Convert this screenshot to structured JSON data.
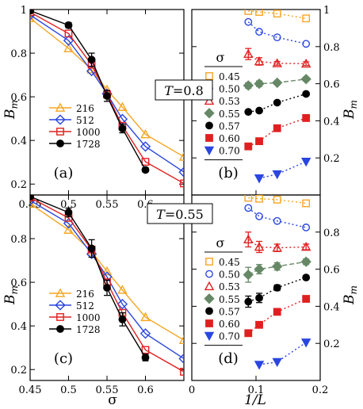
{
  "figure": {
    "shared_ylabel": "B",
    "shared_ylabel_sub": "m",
    "left_xlabel": "σ",
    "right_xlabel": "1/L",
    "temperature_labels": [
      "T=0.8",
      "T=0.55"
    ],
    "temp_prefix": "T",
    "temp_values": [
      "0.8",
      "0.55"
    ]
  },
  "chart_data": [
    {
      "panel": "a",
      "panel_label": "(a)",
      "type": "line",
      "xlim": [
        0.45,
        0.65
      ],
      "ylim": [
        0.15,
        1.0
      ],
      "xticks": [
        "0.45",
        "0.5",
        "0.55",
        "0.6"
      ],
      "yticks": [
        "0.2",
        "0.4",
        "0.6",
        "0.8",
        "1"
      ],
      "xlabel": "",
      "legend_position": "lower-left",
      "series": [
        {
          "name": "216",
          "color": "#f5a623",
          "marker": "triangle-open",
          "x": [
            0.45,
            0.5,
            0.53,
            0.55,
            0.57,
            0.6,
            0.65
          ],
          "y": [
            0.96,
            0.822,
            0.725,
            0.632,
            0.553,
            0.428,
            0.325
          ]
        },
        {
          "name": "512",
          "color": "#2a46e0",
          "marker": "diamond-open",
          "x": [
            0.45,
            0.5,
            0.53,
            0.55,
            0.57,
            0.6,
            0.65
          ],
          "y": [
            0.975,
            0.858,
            0.718,
            0.614,
            0.498,
            0.372,
            0.255
          ]
        },
        {
          "name": "1000",
          "color": "#e02020",
          "marker": "square-open",
          "x": [
            0.45,
            0.5,
            0.53,
            0.55,
            0.57,
            0.6,
            0.65
          ],
          "y": [
            0.988,
            0.89,
            0.747,
            0.611,
            0.467,
            0.302,
            0.203
          ]
        },
        {
          "name": "1728",
          "color": "#000000",
          "marker": "circle-filled",
          "x": [
            0.45,
            0.5,
            0.53,
            0.55,
            0.57,
            0.6
          ],
          "y": [
            0.995,
            0.928,
            0.77,
            0.604,
            0.455,
            0.265
          ],
          "yerr": [
            0.005,
            0.012,
            0.03,
            0.025,
            0.02,
            0.01
          ]
        }
      ]
    },
    {
      "panel": "b",
      "panel_label": "(b)",
      "type": "scatter",
      "xlim": [
        0,
        0.2
      ],
      "ylim": [
        0,
        1.0
      ],
      "xticks": [],
      "yticks": [
        "0.2",
        "0.4",
        "0.6",
        "0.8",
        "1"
      ],
      "ylabel_side": "right",
      "legend_title": "σ",
      "legend_position": "left",
      "series": [
        {
          "name": "0.45",
          "color": "#f5a623",
          "marker": "square-open",
          "x": [
            0.088,
            0.105,
            0.133,
            0.178
          ],
          "y": [
            0.992,
            0.987,
            0.978,
            0.952
          ]
        },
        {
          "name": "0.50",
          "color": "#2a46e0",
          "marker": "circle-open",
          "x": [
            0.088,
            0.105,
            0.133,
            0.178
          ],
          "y": [
            0.933,
            0.88,
            0.85,
            0.815
          ]
        },
        {
          "name": "0.53",
          "color": "#e02020",
          "marker": "triangle-open",
          "x": [
            0.088,
            0.105,
            0.133,
            0.178
          ],
          "y": [
            0.76,
            0.72,
            0.71,
            0.708
          ],
          "yerr": [
            0.03,
            0.02,
            0.01,
            0.01
          ]
        },
        {
          "name": "0.55",
          "color": "#668866",
          "marker": "diamond-filled",
          "x": [
            0.088,
            0.105,
            0.133,
            0.178
          ],
          "y": [
            0.59,
            0.6,
            0.605,
            0.625
          ],
          "yerr": [
            0.015,
            0.015,
            0.01,
            0.01
          ]
        },
        {
          "name": "0.57",
          "color": "#000000",
          "marker": "circle-filled",
          "x": [
            0.088,
            0.105,
            0.133,
            0.178
          ],
          "y": [
            0.448,
            0.455,
            0.498,
            0.545
          ]
        },
        {
          "name": "0.60",
          "color": "#e02020",
          "marker": "square-filled",
          "x": [
            0.088,
            0.105,
            0.133,
            0.178
          ],
          "y": [
            0.262,
            0.29,
            0.36,
            0.415
          ]
        },
        {
          "name": "0.70",
          "color": "#2a46e0",
          "marker": "triangle-down-filled",
          "x": [
            0.105,
            0.133,
            0.178
          ],
          "y": [
            0.09,
            0.112,
            0.18
          ]
        }
      ]
    },
    {
      "panel": "c",
      "panel_label": "(c)",
      "type": "line",
      "xlim": [
        0.45,
        0.65
      ],
      "ylim": [
        0.15,
        1.0
      ],
      "xticks": [
        "0.45",
        "0.5",
        "0.55",
        "0.6"
      ],
      "yticks": [
        "0.2",
        "0.4",
        "0.6",
        "0.8"
      ],
      "xlabel": "σ",
      "legend_position": "lower-left",
      "series": [
        {
          "name": "216",
          "color": "#f5a623",
          "marker": "triangle-open",
          "x": [
            0.45,
            0.5,
            0.53,
            0.55,
            0.57,
            0.6,
            0.65
          ],
          "y": [
            0.96,
            0.84,
            0.74,
            0.65,
            0.565,
            0.44,
            0.335
          ]
        },
        {
          "name": "512",
          "color": "#2a46e0",
          "marker": "diamond-open",
          "x": [
            0.45,
            0.5,
            0.53,
            0.55,
            0.57,
            0.6,
            0.65
          ],
          "y": [
            0.975,
            0.87,
            0.73,
            0.625,
            0.5,
            0.365,
            0.25
          ]
        },
        {
          "name": "1000",
          "color": "#e02020",
          "marker": "square-open",
          "x": [
            0.45,
            0.5,
            0.53,
            0.55,
            0.57,
            0.6,
            0.65
          ],
          "y": [
            0.988,
            0.895,
            0.75,
            0.6,
            0.46,
            0.29,
            0.19
          ]
        },
        {
          "name": "1728",
          "color": "#000000",
          "marker": "circle-filled",
          "x": [
            0.45,
            0.5,
            0.53,
            0.55,
            0.57,
            0.6
          ],
          "y": [
            0.993,
            0.92,
            0.755,
            0.575,
            0.43,
            0.255
          ],
          "yerr": [
            0.005,
            0.02,
            0.04,
            0.035,
            0.03,
            0.015
          ]
        }
      ]
    },
    {
      "panel": "d",
      "panel_label": "(d)",
      "type": "scatter",
      "xlim": [
        0,
        0.2
      ],
      "ylim": [
        0,
        1.0
      ],
      "xticks": [
        "0",
        "0.1",
        "0.2"
      ],
      "yticks": [
        "0.2",
        "0.4",
        "0.6",
        "0.8"
      ],
      "xlabel": "1/L",
      "ylabel_side": "right",
      "legend_title": "σ",
      "legend_position": "left",
      "series": [
        {
          "name": "0.45",
          "color": "#f5a623",
          "marker": "square-open",
          "x": [
            0.088,
            0.105,
            0.133,
            0.178
          ],
          "y": [
            0.985,
            0.98,
            0.975,
            0.955
          ]
        },
        {
          "name": "0.50",
          "color": "#2a46e0",
          "marker": "circle-open",
          "x": [
            0.088,
            0.105,
            0.133,
            0.178
          ],
          "y": [
            0.93,
            0.885,
            0.86,
            0.825
          ]
        },
        {
          "name": "0.53",
          "color": "#e02020",
          "marker": "triangle-open",
          "x": [
            0.088,
            0.105,
            0.133,
            0.178
          ],
          "y": [
            0.76,
            0.72,
            0.715,
            0.72
          ],
          "yerr": [
            0.04,
            0.03,
            0.02,
            0.015
          ]
        },
        {
          "name": "0.55",
          "color": "#668866",
          "marker": "diamond-filled",
          "x": [
            0.088,
            0.105,
            0.133,
            0.178
          ],
          "y": [
            0.57,
            0.6,
            0.615,
            0.64
          ],
          "yerr": [
            0.04,
            0.025,
            0.02,
            0.015
          ]
        },
        {
          "name": "0.57",
          "color": "#000000",
          "marker": "circle-filled",
          "x": [
            0.088,
            0.105,
            0.133,
            0.178
          ],
          "y": [
            0.425,
            0.445,
            0.5,
            0.555
          ],
          "yerr": [
            0.03,
            0.025,
            0.015,
            0.01
          ]
        },
        {
          "name": "0.60",
          "color": "#e02020",
          "marker": "square-filled",
          "x": [
            0.088,
            0.105,
            0.133,
            0.178
          ],
          "y": [
            0.255,
            0.3,
            0.37,
            0.44
          ]
        },
        {
          "name": "0.70",
          "color": "#2a46e0",
          "marker": "triangle-down-filled",
          "x": [
            0.105,
            0.133,
            0.178
          ],
          "y": [
            0.085,
            0.1,
            0.205
          ]
        }
      ]
    }
  ]
}
